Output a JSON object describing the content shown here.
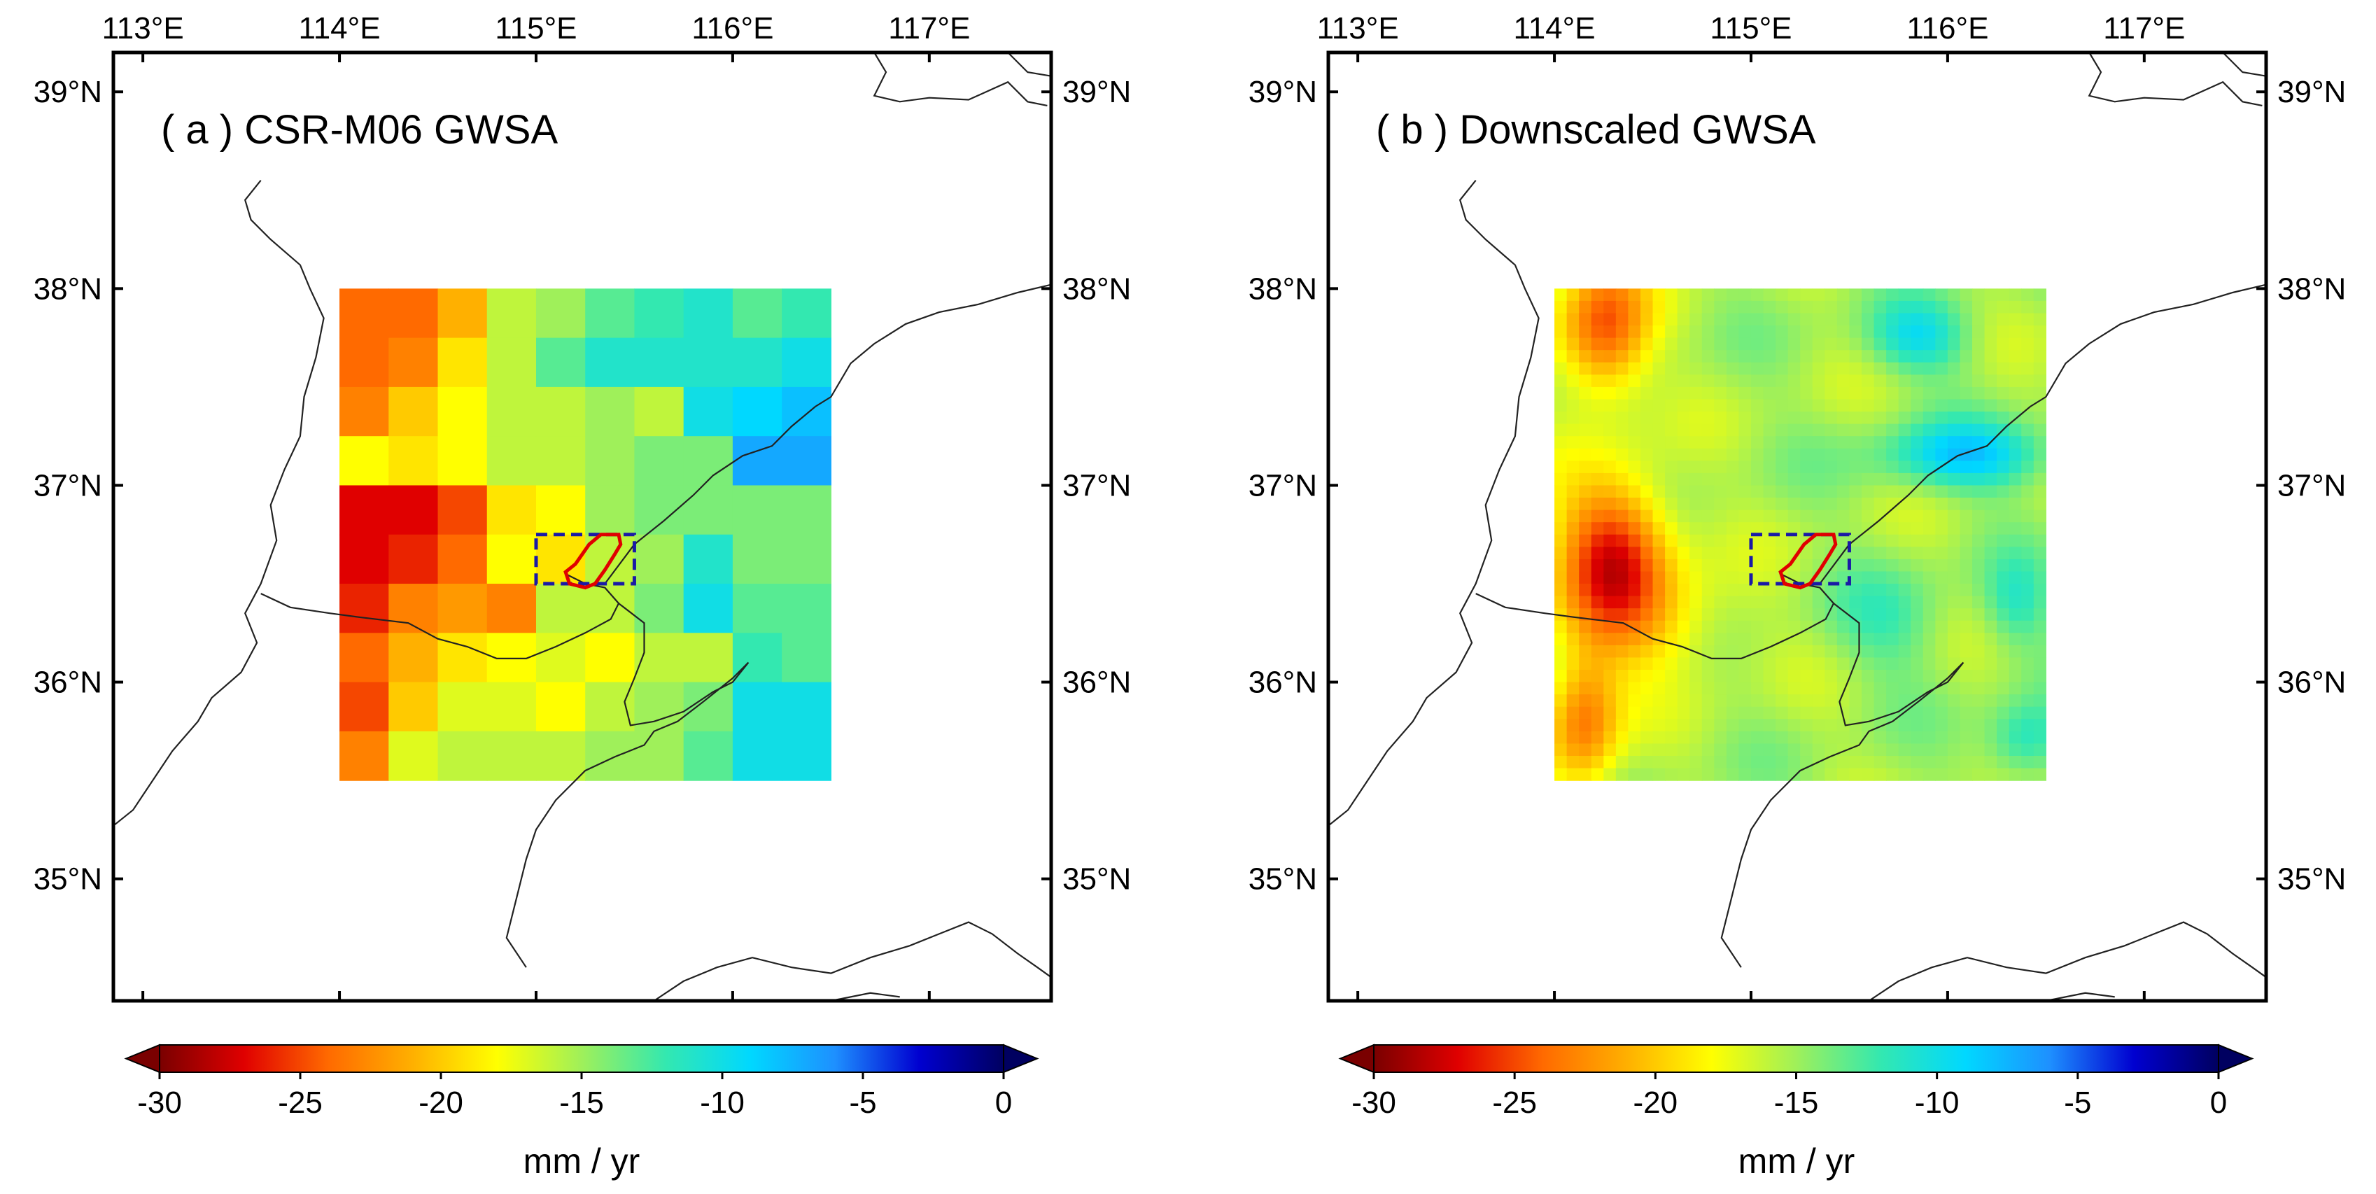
{
  "figure": {
    "units": "mm / yr"
  },
  "map_extent": {
    "lon_min": 112.85,
    "lon_max": 117.62,
    "lat_min": 34.38,
    "lat_max": 39.2
  },
  "ticks": {
    "lon": [
      113,
      114,
      115,
      116,
      117
    ],
    "lat": [
      35,
      36,
      37,
      38,
      39
    ],
    "lon_labels": [
      "113°E",
      "114°E",
      "115°E",
      "116°E",
      "117°E"
    ],
    "lat_labels": [
      "35°N",
      "36°N",
      "37°N",
      "38°N",
      "39°N"
    ]
  },
  "grid_domain": {
    "lon_min": 114.0,
    "lon_max": 116.5,
    "lat_min": 35.5,
    "lat_max": 38.0
  },
  "study_box": {
    "lon_min": 115.0,
    "lon_max": 115.5,
    "lat_min": 36.5,
    "lat_max": 36.75
  },
  "study_area": [
    [
      115.25,
      36.48
    ],
    [
      115.17,
      36.5
    ],
    [
      115.15,
      36.56
    ],
    [
      115.2,
      36.6
    ],
    [
      115.27,
      36.7
    ],
    [
      115.33,
      36.75
    ],
    [
      115.42,
      36.75
    ],
    [
      115.43,
      36.7
    ],
    [
      115.4,
      36.65
    ],
    [
      115.35,
      36.57
    ],
    [
      115.3,
      36.5
    ]
  ],
  "colormap": {
    "min": -30,
    "max": 0,
    "stops": [
      "#7a0000",
      "#e00000",
      "#ff6a00",
      "#ffb000",
      "#ffff00",
      "#9ff05a",
      "#33e8b0",
      "#00d8ff",
      "#1e90ff",
      "#0000d0",
      "#000060"
    ]
  },
  "colorbar": {
    "ticks": [
      -30,
      -25,
      -20,
      -15,
      -10,
      -5,
      0
    ],
    "tick_labels": [
      "-30",
      "-25",
      "-20",
      "-15",
      "-10",
      "-5",
      "0"
    ]
  },
  "boundaries": [
    [
      [
        112.85,
        35.27
      ],
      [
        112.95,
        35.35
      ],
      [
        113.05,
        35.5
      ],
      [
        113.15,
        35.65
      ],
      [
        113.28,
        35.8
      ],
      [
        113.35,
        35.92
      ],
      [
        113.5,
        36.05
      ],
      [
        113.58,
        36.2
      ],
      [
        113.52,
        36.35
      ],
      [
        113.6,
        36.5
      ],
      [
        113.68,
        36.72
      ],
      [
        113.65,
        36.9
      ],
      [
        113.72,
        37.08
      ],
      [
        113.8,
        37.25
      ],
      [
        113.82,
        37.45
      ],
      [
        113.88,
        37.65
      ],
      [
        113.92,
        37.85
      ],
      [
        113.85,
        38.0
      ],
      [
        113.8,
        38.12
      ],
      [
        113.65,
        38.25
      ],
      [
        113.55,
        38.35
      ],
      [
        113.52,
        38.45
      ],
      [
        113.6,
        38.55
      ]
    ],
    [
      [
        113.6,
        36.45
      ],
      [
        113.75,
        36.38
      ],
      [
        113.95,
        36.35
      ],
      [
        114.1,
        36.33
      ],
      [
        114.35,
        36.3
      ],
      [
        114.5,
        36.22
      ],
      [
        114.65,
        36.18
      ],
      [
        114.8,
        36.12
      ],
      [
        114.95,
        36.12
      ],
      [
        115.1,
        36.18
      ],
      [
        115.25,
        36.25
      ],
      [
        115.38,
        36.32
      ],
      [
        115.42,
        36.4
      ],
      [
        115.35,
        36.48
      ],
      [
        115.25,
        36.5
      ],
      [
        115.15,
        36.55
      ]
    ],
    [
      [
        115.42,
        36.4
      ],
      [
        115.55,
        36.3
      ],
      [
        115.55,
        36.15
      ],
      [
        115.5,
        36.02
      ],
      [
        115.45,
        35.9
      ],
      [
        115.48,
        35.78
      ],
      [
        115.6,
        35.8
      ],
      [
        115.75,
        35.85
      ],
      [
        115.9,
        35.95
      ],
      [
        116.0,
        36.0
      ],
      [
        116.08,
        36.1
      ],
      [
        116.0,
        36.02
      ],
      [
        115.85,
        35.9
      ],
      [
        115.72,
        35.8
      ],
      [
        115.6,
        35.75
      ],
      [
        115.55,
        35.68
      ],
      [
        115.4,
        35.62
      ],
      [
        115.25,
        35.55
      ],
      [
        115.1,
        35.4
      ],
      [
        115.0,
        35.25
      ],
      [
        114.95,
        35.1
      ],
      [
        114.9,
        34.9
      ],
      [
        114.85,
        34.7
      ],
      [
        114.95,
        34.55
      ]
    ],
    [
      [
        115.35,
        36.5
      ],
      [
        115.5,
        36.7
      ],
      [
        115.65,
        36.82
      ],
      [
        115.8,
        36.95
      ],
      [
        115.9,
        37.05
      ],
      [
        116.05,
        37.15
      ],
      [
        116.2,
        37.2
      ],
      [
        116.3,
        37.3
      ],
      [
        116.42,
        37.4
      ],
      [
        116.5,
        37.45
      ],
      [
        116.6,
        37.62
      ],
      [
        116.72,
        37.72
      ],
      [
        116.88,
        37.82
      ],
      [
        117.05,
        37.88
      ],
      [
        117.25,
        37.92
      ],
      [
        117.45,
        37.98
      ],
      [
        117.62,
        38.02
      ]
    ],
    [
      [
        116.72,
        39.2
      ],
      [
        116.78,
        39.1
      ],
      [
        116.72,
        38.98
      ],
      [
        116.85,
        38.95
      ],
      [
        117.0,
        38.97
      ],
      [
        117.2,
        38.96
      ],
      [
        117.4,
        39.05
      ],
      [
        117.5,
        38.95
      ],
      [
        117.6,
        38.93
      ]
    ],
    [
      [
        117.4,
        39.2
      ],
      [
        117.5,
        39.1
      ],
      [
        117.62,
        39.08
      ]
    ],
    [
      [
        115.6,
        34.38
      ],
      [
        115.75,
        34.48
      ],
      [
        115.92,
        34.55
      ],
      [
        116.1,
        34.6
      ],
      [
        116.3,
        34.55
      ],
      [
        116.5,
        34.52
      ],
      [
        116.7,
        34.6
      ],
      [
        116.9,
        34.66
      ],
      [
        117.05,
        34.72
      ],
      [
        117.2,
        34.78
      ],
      [
        117.32,
        34.72
      ],
      [
        117.45,
        34.62
      ],
      [
        117.55,
        34.55
      ],
      [
        117.62,
        34.5
      ]
    ],
    [
      [
        116.5,
        34.38
      ],
      [
        116.7,
        34.42
      ],
      [
        116.85,
        34.4
      ]
    ]
  ],
  "panels": [
    {
      "id": "a",
      "title": "( a ) CSR-M06 GWSA",
      "grid": {
        "rows": 10,
        "cols": 10,
        "row_order": "north_to_south",
        "values": [
          [
            -24,
            -24,
            -21,
            -16,
            -15,
            -13,
            -12,
            -11,
            -13,
            -12
          ],
          [
            -24,
            -23,
            -19,
            -16,
            -13,
            -11,
            -11,
            -11,
            -11,
            -10
          ],
          [
            -23,
            -20,
            -18,
            -16,
            -16,
            -15,
            -16,
            -10,
            -9,
            -8
          ],
          [
            -18,
            -19,
            -18,
            -16,
            -16,
            -15,
            -14,
            -14,
            -7,
            -7
          ],
          [
            -27,
            -27,
            -25,
            -19,
            -18,
            -15,
            -14,
            -14,
            -14,
            -14
          ],
          [
            -27,
            -26,
            -24,
            -18,
            -19,
            -16,
            -15,
            -11,
            -14,
            -14
          ],
          [
            -26,
            -23,
            -22,
            -23,
            -16,
            -16,
            -14,
            -10,
            -13,
            -13
          ],
          [
            -24,
            -21,
            -19,
            -18,
            -17,
            -18,
            -16,
            -16,
            -12,
            -13
          ],
          [
            -25,
            -20,
            -17,
            -17,
            -18,
            -16,
            -15,
            -14,
            -10,
            -10
          ],
          [
            -23,
            -17,
            -16,
            -16,
            -16,
            -15,
            -15,
            -13,
            -10,
            -10
          ]
        ]
      }
    },
    {
      "id": "b",
      "title": "( b ) Downscaled GWSA",
      "grid": {
        "rows": 40,
        "cols": 40,
        "row_order": "north_to_south",
        "generated_from": "smooth_field",
        "base": -15.3,
        "features": [
          {
            "lon": 114.25,
            "lat": 37.8,
            "sigma_lon": 0.16,
            "sigma_lat": 0.25,
            "amp": -9.5
          },
          {
            "lon": 114.3,
            "lat": 36.65,
            "sigma_lon": 0.2,
            "sigma_lat": 0.28,
            "amp": -11
          },
          {
            "lon": 114.15,
            "lat": 35.8,
            "sigma_lon": 0.13,
            "sigma_lat": 0.25,
            "amp": -8
          },
          {
            "lon": 114.5,
            "lat": 36.3,
            "sigma_lon": 0.3,
            "sigma_lat": 0.2,
            "amp": -3.5
          },
          {
            "lon": 116.1,
            "lat": 37.15,
            "sigma_lon": 0.3,
            "sigma_lat": 0.12,
            "amp": 6.5
          },
          {
            "lon": 115.85,
            "lat": 37.75,
            "sigma_lon": 0.18,
            "sigma_lat": 0.13,
            "amp": 5
          },
          {
            "lon": 116.4,
            "lat": 35.7,
            "sigma_lon": 0.14,
            "sigma_lat": 0.14,
            "amp": 4.5
          },
          {
            "lon": 116.35,
            "lat": 36.4,
            "sigma_lon": 0.12,
            "sigma_lat": 0.16,
            "amp": 3.5
          },
          {
            "lon": 115.7,
            "lat": 36.3,
            "sigma_lon": 0.22,
            "sigma_lat": 0.2,
            "amp": 2.5
          }
        ]
      }
    }
  ]
}
